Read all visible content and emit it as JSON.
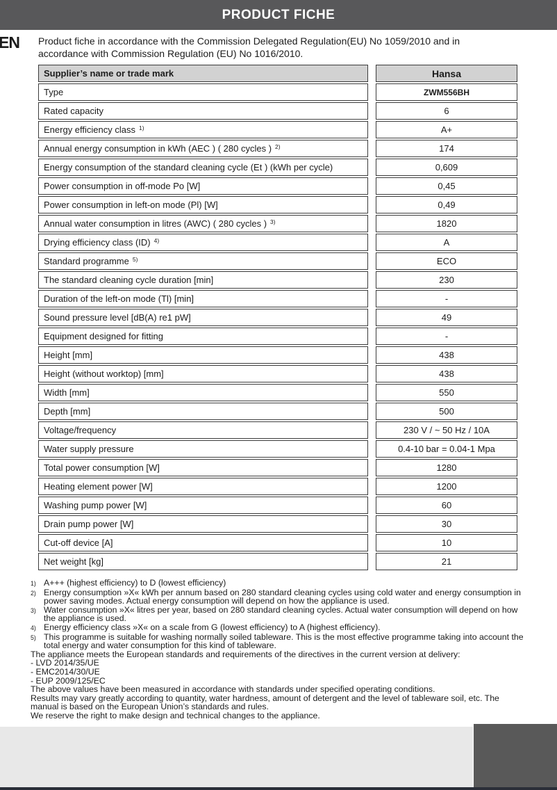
{
  "header": {
    "title": "PRODUCT FICHE"
  },
  "intro": {
    "lang": "EN",
    "text": "Product fiche in accordance with the Commission Delegated Regulation(EU) No 1059/2010 and in accordance with Commission Regulation (EU) No 1016/2010."
  },
  "table": {
    "rows": [
      {
        "label": "Supplier’s name or trade mark",
        "sup": "",
        "value": "Hansa"
      },
      {
        "label": "Type",
        "sup": "",
        "value": "ZWM556BH"
      },
      {
        "label": "Rated capacity",
        "sup": "",
        "value": "6"
      },
      {
        "label": "Energy efficiency class",
        "sup": "1)",
        "value": "A+"
      },
      {
        "label": "Annual energy consumption in kWh (AEC ) ( 280 cycles )",
        "sup": "2)",
        "value": "174"
      },
      {
        "label": "Energy consumption of the standard cleaning cycle (Et ) (kWh per cycle)",
        "sup": "",
        "value": "0,609"
      },
      {
        "label": "Power consumption in off-mode Po [W]",
        "sup": "",
        "value": "0,45"
      },
      {
        "label": "Power consumption in left-on mode (Pl) [W]",
        "sup": "",
        "value": "0,49"
      },
      {
        "label": "Annual water consumption in litres (AWC) ( 280 cycles )",
        "sup": "3)",
        "value": "1820"
      },
      {
        "label": "Drying efficiency class (ID)",
        "sup": "4)",
        "value": "A"
      },
      {
        "label": "Standard programme",
        "sup": "5)",
        "value": "ECO"
      },
      {
        "label": "The standard cleaning cycle duration [min]",
        "sup": "",
        "value": "230"
      },
      {
        "label": "Duration of the left-on mode (Tl) [min]",
        "sup": "",
        "value": "-"
      },
      {
        "label": "Sound pressure level [dB(A) re1 pW]",
        "sup": "",
        "value": "49"
      },
      {
        "label": "Equipment designed for fitting",
        "sup": "",
        "value": "-"
      },
      {
        "label": "Height [mm]",
        "sup": "",
        "value": "438"
      },
      {
        "label": "Height (without worktop) [mm]",
        "sup": "",
        "value": "438"
      },
      {
        "label": "Width [mm]",
        "sup": "",
        "value": "550"
      },
      {
        "label": "Depth [mm]",
        "sup": "",
        "value": "500"
      },
      {
        "label": "Voltage/frequency",
        "sup": "",
        "value": "230 V / ~ 50 Hz / 10A"
      },
      {
        "label": "Water supply pressure",
        "sup": "",
        "value": "0.4-10 bar = 0.04-1 Mpa"
      },
      {
        "label": "Total power consumption [W]",
        "sup": "",
        "value": "1280"
      },
      {
        "label": "Heating element power [W]",
        "sup": "",
        "value": "1200"
      },
      {
        "label": "Washing pump power [W]",
        "sup": "",
        "value": "60"
      },
      {
        "label": "Drain pump power [W]",
        "sup": "",
        "value": "30"
      },
      {
        "label": "Cut-off device [A]",
        "sup": "",
        "value": "10"
      },
      {
        "label": "Net weight [kg]",
        "sup": "",
        "value": "21"
      }
    ]
  },
  "footnotes": [
    {
      "marker": "1)",
      "text": "A+++ (highest efficiency) to D (lowest efficiency)"
    },
    {
      "marker": "2)",
      "text": "Energy consumption »X« kWh per annum based on 280 standard cleaning cycles using cold water and energy consumption in power saving modes. Actual energy consumption will depend on how the appliance is used."
    },
    {
      "marker": "3)",
      "text": "Water consumption »X« litres per year, based on 280 standard cleaning cycles. Actual water consumption will depend on how the appliance is used."
    },
    {
      "marker": "4)",
      "text": "Energy efficiency class »X« on a scale from G (lowest efficiency) to A (highest efficiency)."
    },
    {
      "marker": "5)",
      "text": "This programme is suitable for washing normally soiled tableware. This is the most effective programme taking into account the total energy and water consumption for this kind of tableware."
    }
  ],
  "closing_paragraphs": [
    {
      "text": "The appliance meets the European standards and requirements of the directives in the current version at delivery:"
    },
    {
      "text": "- LVD 2014/35/UE"
    },
    {
      "text": "- EMC2014/30/UE"
    },
    {
      "text": "- EUP 2009/125/EC"
    },
    {
      "text": "The above values have been measured in accordance with standards under specified operating conditions."
    },
    {
      "text": "Results may vary greatly according to quantity, water hardness, amount of detergent and the level of tableware soil, etc. The manual is based on the European Union’s standards and rules."
    },
    {
      "text": "We reserve the right to make design and technical changes to the appliance."
    }
  ],
  "colors": {
    "titlebar_bg": "#58585a",
    "titlebar_text": "#ffffff",
    "table_header_bg": "#d2d2d2",
    "table_border": "#3b3b3b",
    "text": "#1c1c1c",
    "footer_light": "#e8e8e8",
    "footer_dark": "#595959",
    "bottom_strip": "#2a2e38"
  }
}
